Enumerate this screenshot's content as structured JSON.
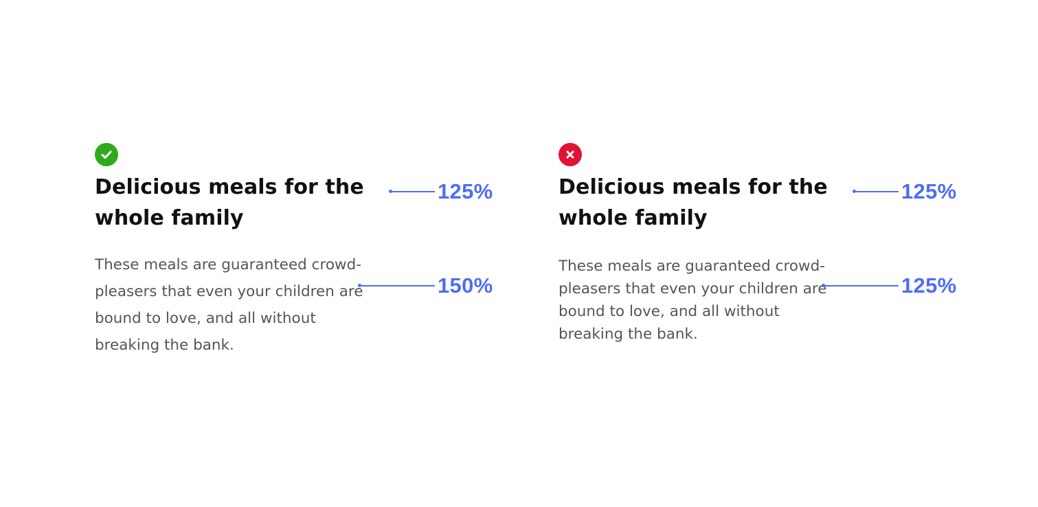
{
  "colors": {
    "good": "#2eaa1c",
    "bad": "#e01337",
    "annotation": "#4f6df5",
    "heading": "#111111",
    "body": "#555555"
  },
  "examples": [
    {
      "status": "good",
      "status_icon": "check-circle-icon",
      "heading": "Delicious meals for the whole family",
      "body": "These meals are guaranteed crowd-pleasers that even your children are bound to love, and all without breaking the bank.",
      "heading_line_height": "125%",
      "body_line_height": "150%"
    },
    {
      "status": "bad",
      "status_icon": "x-circle-icon",
      "heading": "Delicious meals for the whole family",
      "body": "These meals are guaranteed crowd-pleasers that even your children are bound to love, and all without breaking the bank.",
      "heading_line_height": "125%",
      "body_line_height": "125%"
    }
  ]
}
